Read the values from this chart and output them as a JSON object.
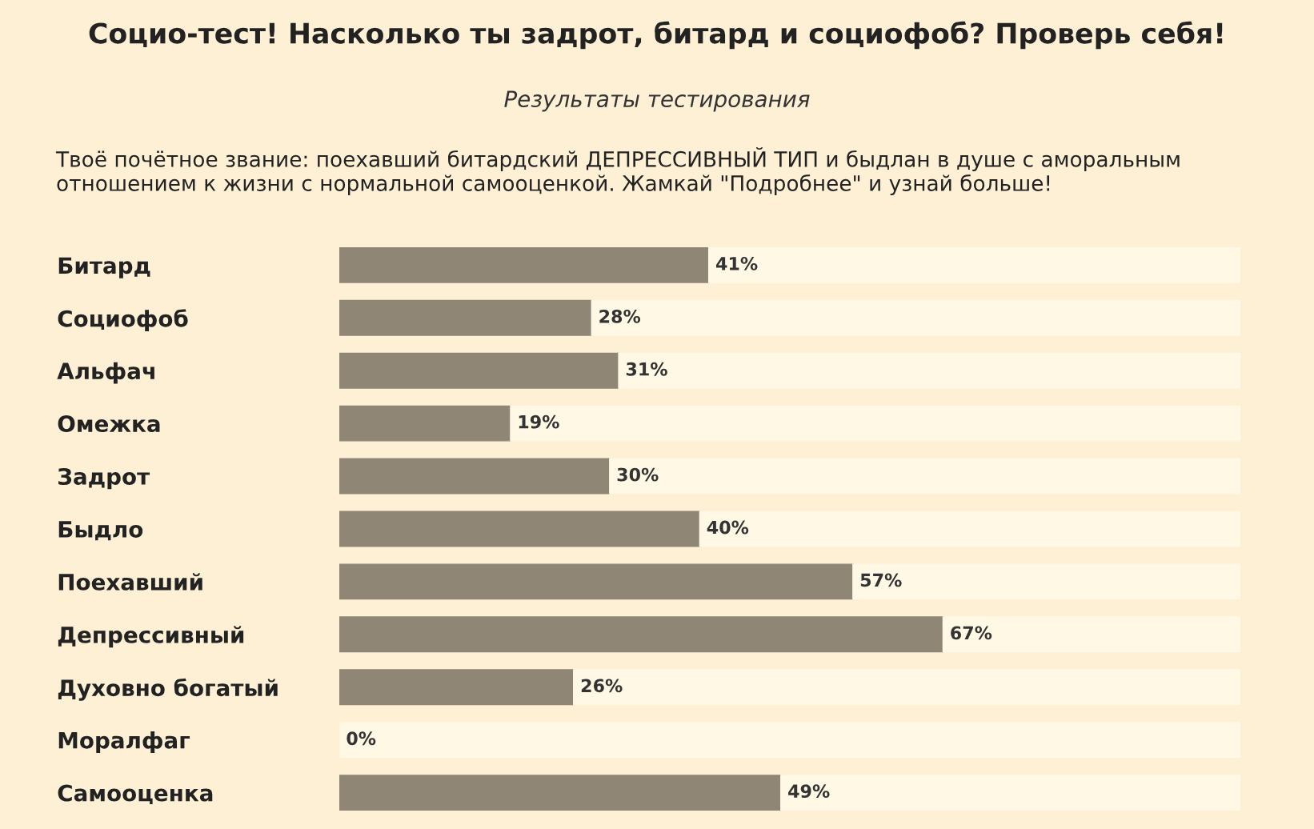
{
  "chart_data": {
    "type": "bar",
    "orientation": "horizontal",
    "stacked": true,
    "title": "Социо-тест! Насколько ты задрот, битард и социофоб? Проверь себя!",
    "subtitle": "Результаты тестирования",
    "annotations": [
      "Твоё почётное звание: поехавший битардский ДЕПРЕССИВНЫЙ ТИП и быдлан в душе с аморальным отношением к жизни с нормальной самооценкой. Жамкай \"Подробнее\" и узнай больше!"
    ],
    "categories": [
      "Битард",
      "Социофоб",
      "Альфач",
      "Омежка",
      "Задрот",
      "Быдло",
      "Поехавший",
      "Депрессивный",
      "Духовно богатый",
      "Моралфаг",
      "Самооценка"
    ],
    "series": [
      {
        "color": "#8f8676",
        "values": [
          41,
          28,
          31,
          19,
          30,
          40,
          57,
          67,
          26,
          0,
          49
        ],
        "value_labels": [
          "41%",
          "28%",
          "31%",
          "19%",
          "30%",
          "40%",
          "57%",
          "67%",
          "26%",
          "0%",
          "49%"
        ]
      },
      {
        "color": "#fff8e4",
        "values": [
          59,
          72,
          69,
          81,
          70,
          60,
          43,
          33,
          74,
          100,
          51
        ]
      }
    ],
    "xlim": [
      0,
      100
    ],
    "tick_labels": "y"
  }
}
